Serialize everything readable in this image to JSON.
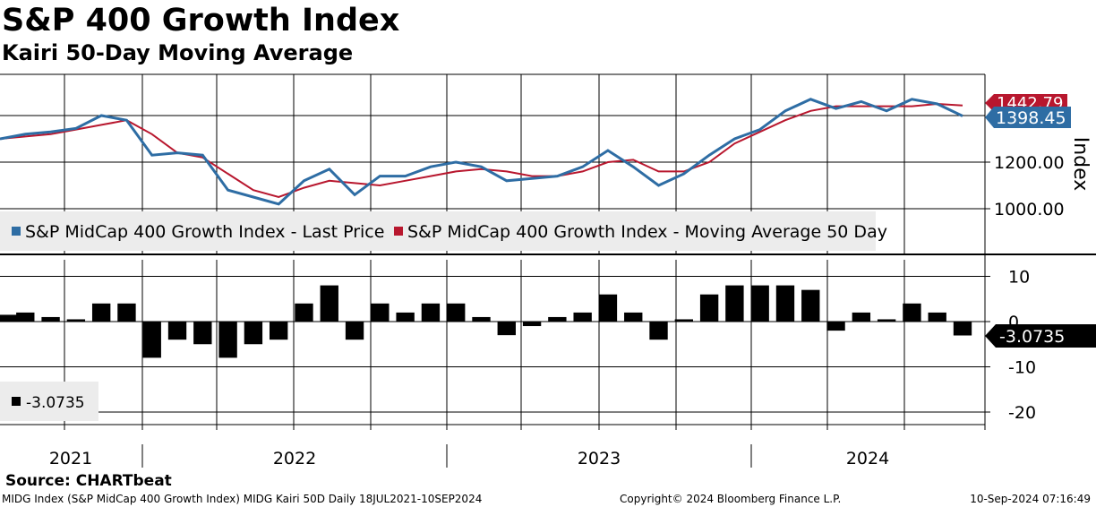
{
  "header": {
    "title": "S&P 400 Growth Index",
    "subtitle": "Kairi 50-Day Moving Average"
  },
  "footer": {
    "source": "Source: CHARTbeat",
    "description": "MIDG Index (S&P MidCap 400 Growth Index) MIDG Kairi 50D  Daily 18JUL2021-10SEP2024",
    "copyright": "Copyright© 2024 Bloomberg Finance L.P.",
    "timestamp": "10-Sep-2024 07:16:49"
  },
  "colors": {
    "price": "#2e6da4",
    "moving_average": "#b8172e",
    "kairi": "#000000",
    "grid": "#000000",
    "legend_bg": "#ececec"
  },
  "chart_data": [
    {
      "type": "line",
      "ylabel": "Index",
      "ylim": [
        880,
        1540
      ],
      "yticks": [
        1000,
        1200
      ],
      "ytick_labels": [
        "1000.00",
        "1200.00"
      ],
      "legend_position": "bottom-left",
      "grid": true,
      "x": [
        "2021-07",
        "2021-08",
        "2021-09",
        "2021-10",
        "2021-11",
        "2021-12",
        "2022-01",
        "2022-02",
        "2022-03",
        "2022-04",
        "2022-05",
        "2022-06",
        "2022-07",
        "2022-08",
        "2022-09",
        "2022-10",
        "2022-11",
        "2022-12",
        "2023-01",
        "2023-02",
        "2023-03",
        "2023-04",
        "2023-05",
        "2023-06",
        "2023-07",
        "2023-08",
        "2023-09",
        "2023-10",
        "2023-11",
        "2023-12",
        "2024-01",
        "2024-02",
        "2024-03",
        "2024-04",
        "2024-05",
        "2024-06",
        "2024-07",
        "2024-08",
        "2024-09"
      ],
      "series": [
        {
          "name": "S&P MidCap 400 Growth Index - Last Price",
          "last_value_label": "1398.45",
          "values": [
            1300,
            1320,
            1330,
            1345,
            1400,
            1380,
            1230,
            1240,
            1230,
            1080,
            1050,
            1020,
            1120,
            1170,
            1060,
            1140,
            1140,
            1180,
            1200,
            1180,
            1120,
            1130,
            1140,
            1180,
            1250,
            1180,
            1100,
            1150,
            1230,
            1300,
            1340,
            1420,
            1470,
            1430,
            1460,
            1420,
            1470,
            1450,
            1398
          ]
        },
        {
          "name": "S&P MidCap 400 Growth Index - Moving Average 50 Day",
          "last_value_label": "1442.79",
          "values": [
            1300,
            1310,
            1320,
            1340,
            1360,
            1380,
            1320,
            1240,
            1220,
            1150,
            1080,
            1050,
            1090,
            1120,
            1110,
            1100,
            1120,
            1140,
            1160,
            1170,
            1160,
            1140,
            1140,
            1160,
            1200,
            1210,
            1160,
            1160,
            1200,
            1280,
            1330,
            1380,
            1420,
            1440,
            1440,
            1440,
            1440,
            1450,
            1443
          ]
        }
      ]
    },
    {
      "type": "bar",
      "ylim": [
        -22,
        13
      ],
      "yticks": [
        10,
        0,
        -10,
        -20
      ],
      "ytick_labels": [
        "10",
        "0",
        "-10",
        "-20"
      ],
      "x_axis_labels": [
        "2021",
        "2022",
        "2023",
        "2024"
      ],
      "legend_position": "bottom-left",
      "series": [
        {
          "name": "Kairi",
          "legend_label": "-3.0735",
          "last_value_label": "-3.0735",
          "values": [
            1.5,
            2,
            1,
            0.5,
            4,
            4,
            -8,
            -4,
            -5,
            -8,
            -5,
            -4,
            4,
            8,
            -4,
            4,
            2,
            4,
            4,
            1,
            -3,
            -1,
            1,
            2,
            6,
            2,
            -4,
            0.5,
            6,
            8,
            8,
            8,
            7,
            -2,
            2,
            0.5,
            4,
            2,
            -3.07
          ]
        }
      ]
    }
  ]
}
